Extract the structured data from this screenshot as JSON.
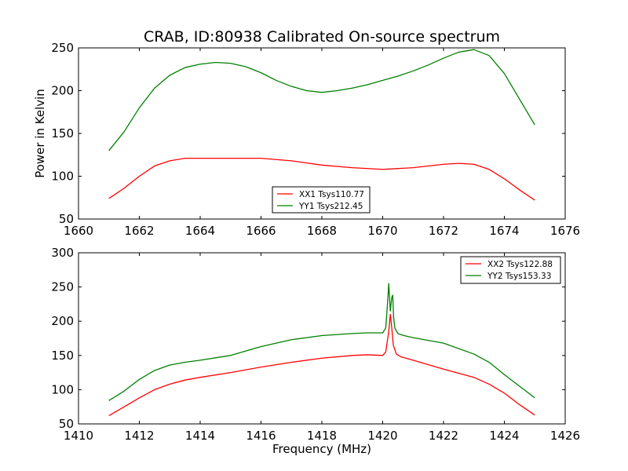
{
  "figure": {
    "title": "CRAB, ID:80938 Calibrated On-source spectrum"
  },
  "chart_data": [
    {
      "type": "line",
      "title": "CRAB, ID:80938 Calibrated On-source spectrum",
      "xlabel": "",
      "ylabel": "Power in Kelvin",
      "xlim": [
        1660,
        1676
      ],
      "ylim": [
        50,
        250
      ],
      "xticks": [
        "1660",
        "1662",
        "1664",
        "1666",
        "1668",
        "1670",
        "1672",
        "1674",
        "1676"
      ],
      "yticks": [
        "50",
        "100",
        "150",
        "200",
        "250"
      ],
      "grid": false,
      "legend_position": "lower-center",
      "series": [
        {
          "name": "XX1 Tsys110.77",
          "color": "#ff0000",
          "x": [
            1661.0,
            1661.5,
            1662.0,
            1662.5,
            1663.0,
            1663.5,
            1664.0,
            1665.0,
            1666.0,
            1667.0,
            1668.0,
            1669.0,
            1670.0,
            1671.0,
            1672.0,
            1672.5,
            1673.0,
            1673.5,
            1674.0,
            1674.5,
            1675.0
          ],
          "y": [
            74,
            86,
            100,
            112,
            118,
            121,
            121,
            121,
            121,
            118,
            113,
            110,
            108,
            110,
            114,
            115,
            114,
            108,
            97,
            84,
            72
          ]
        },
        {
          "name": "YY1 Tsys212.45",
          "color": "#008000",
          "x": [
            1661.0,
            1661.5,
            1662.0,
            1662.5,
            1663.0,
            1663.5,
            1664.0,
            1664.5,
            1665.0,
            1665.5,
            1666.0,
            1666.5,
            1667.0,
            1667.5,
            1668.0,
            1668.5,
            1669.0,
            1669.5,
            1670.0,
            1670.5,
            1671.0,
            1671.5,
            1672.0,
            1672.5,
            1673.0,
            1673.5,
            1674.0,
            1674.5,
            1675.0
          ],
          "y": [
            130,
            152,
            180,
            203,
            218,
            227,
            231,
            233,
            232,
            228,
            221,
            212,
            205,
            200,
            198,
            200,
            203,
            207,
            212,
            217,
            223,
            230,
            238,
            245,
            248,
            241,
            220,
            190,
            160
          ]
        }
      ]
    },
    {
      "type": "line",
      "title": "",
      "xlabel": "Frequency (MHz)",
      "ylabel": "",
      "xlim": [
        1410,
        1426
      ],
      "ylim": [
        50,
        300
      ],
      "xticks": [
        "1410",
        "1412",
        "1414",
        "1416",
        "1418",
        "1420",
        "1422",
        "1424",
        "1426"
      ],
      "yticks": [
        "50",
        "100",
        "150",
        "200",
        "250",
        "300"
      ],
      "grid": false,
      "legend_position": "top-right",
      "series": [
        {
          "name": "XX2 Tsys122.88",
          "color": "#ff0000",
          "x": [
            1411.0,
            1411.5,
            1412.0,
            1412.5,
            1413.0,
            1413.5,
            1414.0,
            1415.0,
            1416.0,
            1417.0,
            1418.0,
            1419.0,
            1419.5,
            1420.0,
            1420.1,
            1420.2,
            1420.25,
            1420.3,
            1420.35,
            1420.45,
            1420.6,
            1421.0,
            1422.0,
            1423.0,
            1423.5,
            1424.0,
            1424.5,
            1425.0
          ],
          "y": [
            62,
            75,
            88,
            100,
            108,
            114,
            118,
            125,
            133,
            140,
            146,
            150,
            151,
            150,
            155,
            185,
            210,
            190,
            165,
            152,
            148,
            143,
            130,
            118,
            108,
            95,
            78,
            63
          ]
        },
        {
          "name": "YY2 Tsys153.33",
          "color": "#008000",
          "x": [
            1411.0,
            1411.5,
            1412.0,
            1412.5,
            1413.0,
            1413.5,
            1414.0,
            1415.0,
            1416.0,
            1417.0,
            1418.0,
            1419.0,
            1419.5,
            1420.0,
            1420.1,
            1420.15,
            1420.2,
            1420.25,
            1420.3,
            1420.33,
            1420.36,
            1420.4,
            1420.5,
            1420.7,
            1421.0,
            1422.0,
            1423.0,
            1423.5,
            1424.0,
            1424.5,
            1425.0
          ],
          "y": [
            84,
            98,
            115,
            128,
            136,
            140,
            143,
            150,
            163,
            173,
            179,
            182,
            183,
            183,
            190,
            220,
            255,
            215,
            235,
            238,
            205,
            190,
            182,
            179,
            176,
            168,
            152,
            140,
            122,
            105,
            88
          ]
        }
      ]
    }
  ]
}
